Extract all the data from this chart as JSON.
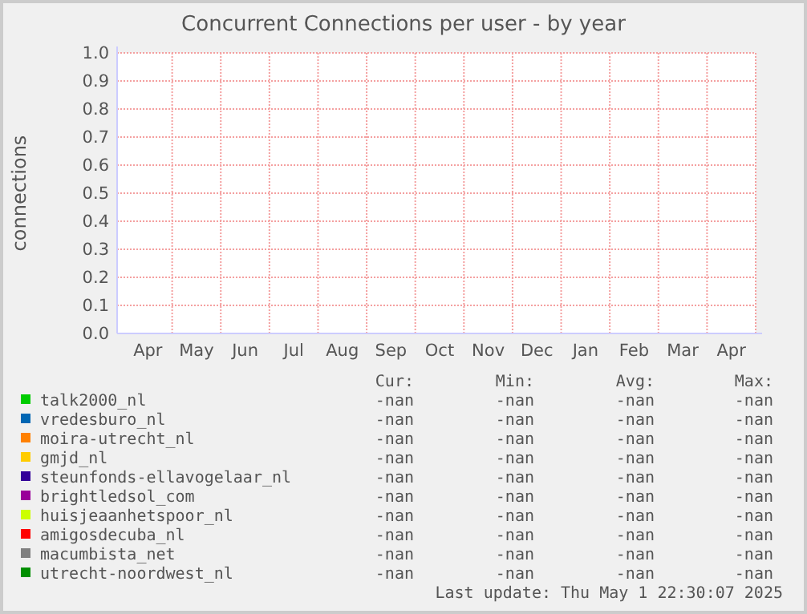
{
  "chart_data": {
    "type": "line",
    "title": "Concurrent Connections per user - by year",
    "ylabel": "connections",
    "categories": [
      "Apr",
      "May",
      "Jun",
      "Jul",
      "Aug",
      "Sep",
      "Oct",
      "Nov",
      "Dec",
      "Jan",
      "Feb",
      "Mar",
      "Apr"
    ],
    "ylim": [
      0,
      1
    ],
    "yticks": [
      {
        "value": 0,
        "label": "0.0"
      },
      0.1,
      0.2,
      0.3,
      0.4,
      0.5,
      0.6,
      0.7,
      0.8,
      0.9,
      {
        "value": 1,
        "label": "1.0"
      }
    ],
    "grid": true,
    "legend": "bottom",
    "series": [
      {
        "name": "talk2000_nl",
        "color": "#00cc00",
        "values": [
          null,
          null,
          null,
          null,
          null,
          null,
          null,
          null,
          null,
          null,
          null,
          null,
          null
        ]
      },
      {
        "name": "vredesburo_nl",
        "color": "#0066b3",
        "values": [
          null,
          null,
          null,
          null,
          null,
          null,
          null,
          null,
          null,
          null,
          null,
          null,
          null
        ]
      },
      {
        "name": "moira-utrecht_nl",
        "color": "#ff8000",
        "values": [
          null,
          null,
          null,
          null,
          null,
          null,
          null,
          null,
          null,
          null,
          null,
          null,
          null
        ]
      },
      {
        "name": "gmjd_nl",
        "color": "#ffcc00",
        "values": [
          null,
          null,
          null,
          null,
          null,
          null,
          null,
          null,
          null,
          null,
          null,
          null,
          null
        ]
      },
      {
        "name": "steunfonds-ellavogelaar_nl",
        "color": "#330099",
        "values": [
          null,
          null,
          null,
          null,
          null,
          null,
          null,
          null,
          null,
          null,
          null,
          null,
          null
        ]
      },
      {
        "name": "brightledsol_com",
        "color": "#990099",
        "values": [
          null,
          null,
          null,
          null,
          null,
          null,
          null,
          null,
          null,
          null,
          null,
          null,
          null
        ]
      },
      {
        "name": "huisjeaanhetspoor_nl",
        "color": "#ccff00",
        "values": [
          null,
          null,
          null,
          null,
          null,
          null,
          null,
          null,
          null,
          null,
          null,
          null,
          null
        ]
      },
      {
        "name": "amigosdecuba_nl",
        "color": "#ff0000",
        "values": [
          null,
          null,
          null,
          null,
          null,
          null,
          null,
          null,
          null,
          null,
          null,
          null,
          null
        ]
      },
      {
        "name": "macumbista_net",
        "color": "#808080",
        "values": [
          null,
          null,
          null,
          null,
          null,
          null,
          null,
          null,
          null,
          null,
          null,
          null,
          null
        ]
      },
      {
        "name": "utrecht-noordwest_nl",
        "color": "#008f00",
        "values": [
          null,
          null,
          null,
          null,
          null,
          null,
          null,
          null,
          null,
          null,
          null,
          null,
          null
        ]
      }
    ],
    "annotations": [
      "Cur:",
      "Min:",
      "Avg:",
      "Max:",
      "-nan",
      "-nan",
      "-nan",
      "-nan",
      "-nan",
      "-nan",
      "-nan",
      "-nan",
      "-nan",
      "-nan",
      "-nan",
      "-nan",
      "-nan",
      "-nan",
      "-nan",
      "-nan",
      "-nan",
      "-nan",
      "-nan",
      "-nan",
      "-nan",
      "-nan",
      "-nan",
      "-nan",
      "-nan",
      "-nan",
      "-nan",
      "-nan",
      "-nan",
      "-nan",
      "-nan",
      "-nan",
      "-nan",
      "-nan",
      "-nan",
      "-nan",
      "-nan",
      "-nan",
      "-nan",
      "-nan",
      "Last update: Thu May  1 22:30:07 2025"
    ]
  }
}
